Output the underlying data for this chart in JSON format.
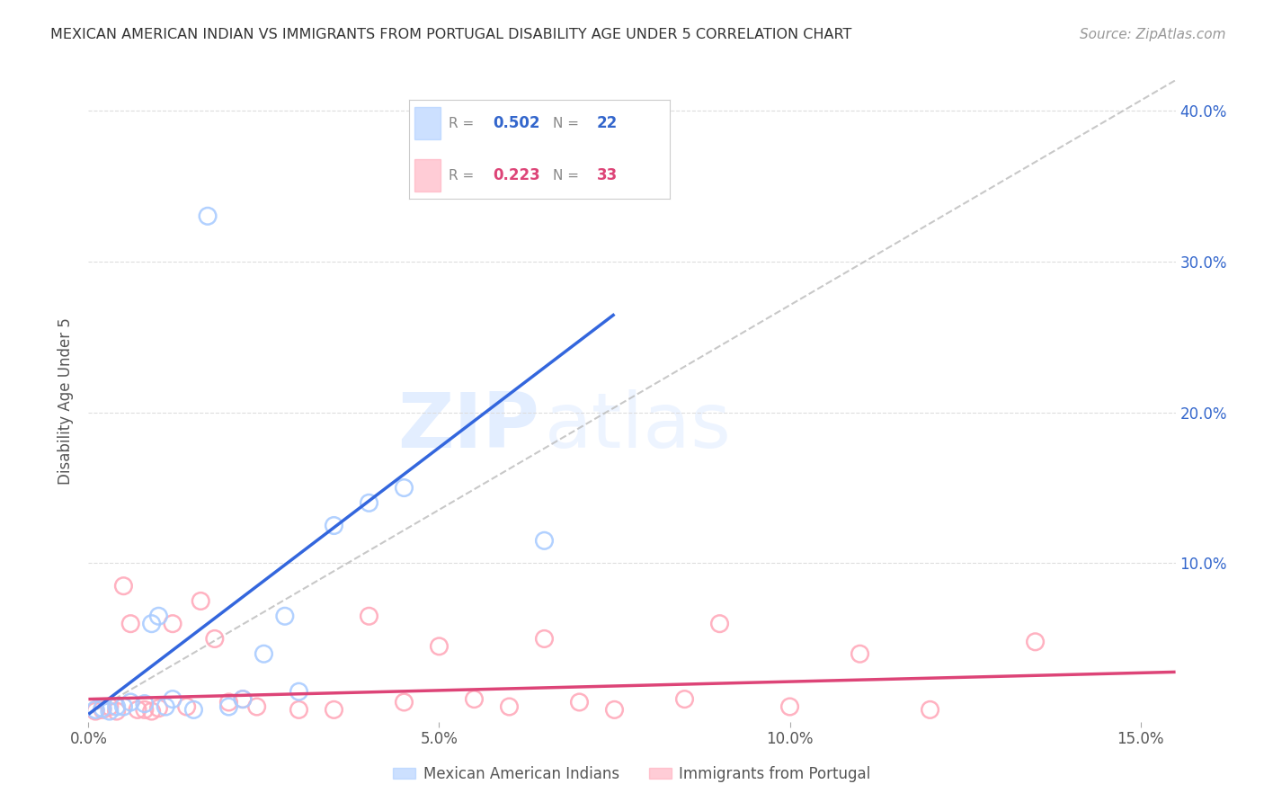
{
  "title": "MEXICAN AMERICAN INDIAN VS IMMIGRANTS FROM PORTUGAL DISABILITY AGE UNDER 5 CORRELATION CHART",
  "source": "Source: ZipAtlas.com",
  "ylabel": "Disability Age Under 5",
  "xlabel_ticks": [
    "0.0%",
    "5.0%",
    "10.0%",
    "15.0%"
  ],
  "xlabel_values": [
    0.0,
    0.05,
    0.1,
    0.15
  ],
  "ylabel_ticks_right": [
    "10.0%",
    "20.0%",
    "30.0%",
    "40.0%"
  ],
  "ylabel_values_right": [
    0.1,
    0.2,
    0.3,
    0.4
  ],
  "xlim": [
    0.0,
    0.155
  ],
  "ylim": [
    -0.005,
    0.42
  ],
  "blue_R": 0.502,
  "blue_N": 22,
  "pink_R": 0.223,
  "pink_N": 33,
  "blue_color": "#aaccff",
  "pink_color": "#ffaabb",
  "blue_line_color": "#3366dd",
  "pink_line_color": "#dd4477",
  "dashed_line_color": "#bbbbbb",
  "blue_scatter_x": [
    0.001,
    0.002,
    0.003,
    0.004,
    0.005,
    0.006,
    0.008,
    0.009,
    0.01,
    0.011,
    0.012,
    0.015,
    0.017,
    0.02,
    0.022,
    0.025,
    0.028,
    0.03,
    0.035,
    0.04,
    0.045,
    0.065
  ],
  "blue_scatter_y": [
    0.003,
    0.004,
    0.002,
    0.005,
    0.005,
    0.008,
    0.007,
    0.06,
    0.065,
    0.005,
    0.01,
    0.003,
    0.33,
    0.005,
    0.01,
    0.04,
    0.065,
    0.015,
    0.125,
    0.14,
    0.15,
    0.115
  ],
  "pink_scatter_x": [
    0.001,
    0.002,
    0.003,
    0.004,
    0.005,
    0.006,
    0.007,
    0.008,
    0.009,
    0.01,
    0.012,
    0.014,
    0.016,
    0.018,
    0.02,
    0.022,
    0.024,
    0.03,
    0.035,
    0.04,
    0.045,
    0.05,
    0.055,
    0.06,
    0.065,
    0.07,
    0.075,
    0.085,
    0.09,
    0.1,
    0.11,
    0.12,
    0.135
  ],
  "pink_scatter_y": [
    0.002,
    0.003,
    0.005,
    0.002,
    0.085,
    0.06,
    0.003,
    0.003,
    0.002,
    0.004,
    0.06,
    0.005,
    0.075,
    0.05,
    0.008,
    0.01,
    0.005,
    0.003,
    0.003,
    0.065,
    0.008,
    0.045,
    0.01,
    0.005,
    0.05,
    0.008,
    0.003,
    0.01,
    0.06,
    0.005,
    0.04,
    0.003,
    0.048
  ],
  "blue_line_x": [
    0.0,
    0.075
  ],
  "blue_line_y": [
    0.0,
    0.265
  ],
  "pink_line_x": [
    0.0,
    0.155
  ],
  "pink_line_y": [
    0.01,
    0.028
  ],
  "dash_line_x": [
    0.0,
    0.155
  ],
  "dash_line_y": [
    0.0,
    0.42
  ],
  "watermark_top": "ZIP",
  "watermark_bot": "atlas",
  "background_color": "#ffffff",
  "grid_color": "#dddddd"
}
